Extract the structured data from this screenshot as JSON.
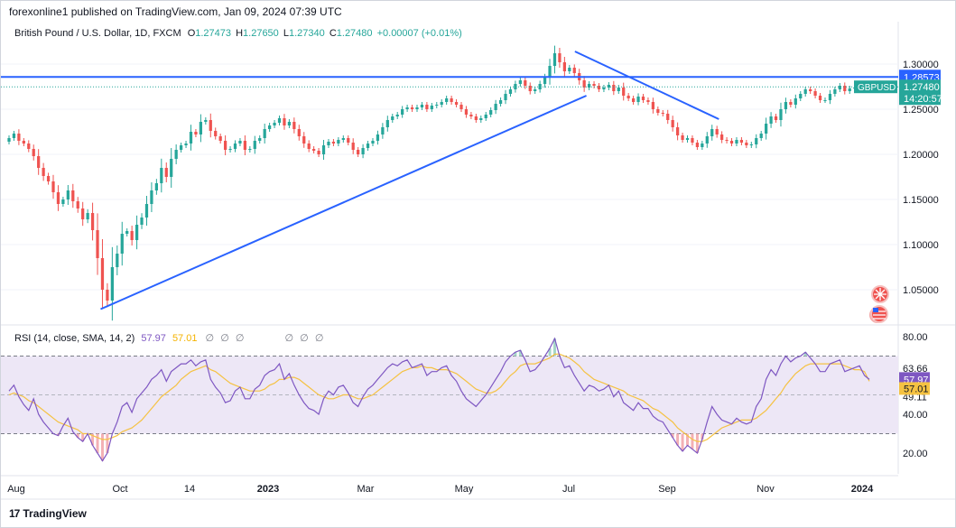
{
  "header": {
    "published": "forexonline1 published on TradingView.com, Jan 09, 2024 07:39 UTC"
  },
  "symbol": {
    "name": "British Pound / U.S. Dollar, 1D, FXCM",
    "open_label": "O",
    "open": "1.27473",
    "high_label": "H",
    "high": "1.27650",
    "low_label": "L",
    "low": "1.27340",
    "close_label": "C",
    "close": "1.27480",
    "change": "+0.00007 (+0.01%)"
  },
  "price_axis": {
    "ticks": [
      "1.30000",
      "1.25000",
      "1.20000",
      "1.15000",
      "1.10000",
      "1.05000"
    ],
    "level_label": "1.28573",
    "symbol_badge": "GBPUSD",
    "price_badge": "1.27480",
    "countdown": "14:20:57"
  },
  "rsi": {
    "legend": "RSI (14, close, SMA, 14, 2)",
    "value": "57.97",
    "sma_value": "57.01",
    "glyphs": [
      "∅",
      "∅",
      "∅",
      "∅",
      "∅",
      "∅"
    ],
    "ticks": [
      "80.00",
      "63.66",
      "49.11",
      "40.00",
      "20.00"
    ]
  },
  "time_axis": {
    "labels": [
      "Aug",
      "Oct",
      "14",
      "2023",
      "Mar",
      "May",
      "Jul",
      "Sep",
      "Nov",
      "2024"
    ]
  },
  "footer": {
    "brand": "TradingView",
    "logo": "17"
  },
  "colors": {
    "up": "#26a69a",
    "down": "#ef5350",
    "trendline": "#2962ff",
    "rsi": "#7e57c2",
    "rsi_sma": "#f5c242",
    "rsi_band": "#ede7f6"
  },
  "chart_data": {
    "type": "candlestick",
    "symbol": "GBPUSD",
    "timeframe": "1D",
    "x_range": [
      "2022-08-01",
      "2024-01-09"
    ],
    "ylim": [
      1.02,
      1.32
    ],
    "closes": [
      1.218,
      1.223,
      1.215,
      1.212,
      1.206,
      1.198,
      1.185,
      1.176,
      1.17,
      1.158,
      1.145,
      1.15,
      1.16,
      1.148,
      1.14,
      1.128,
      1.135,
      1.116,
      1.085,
      1.05,
      1.038,
      1.075,
      1.09,
      1.112,
      1.115,
      1.105,
      1.122,
      1.13,
      1.145,
      1.16,
      1.168,
      1.185,
      1.175,
      1.195,
      1.205,
      1.21,
      1.212,
      1.225,
      1.222,
      1.236,
      1.238,
      1.226,
      1.22,
      1.215,
      1.205,
      1.206,
      1.212,
      1.215,
      1.205,
      1.206,
      1.215,
      1.218,
      1.228,
      1.232,
      1.235,
      1.24,
      1.232,
      1.236,
      1.228,
      1.22,
      1.212,
      1.206,
      1.204,
      1.2,
      1.21,
      1.214,
      1.212,
      1.216,
      1.218,
      1.213,
      1.205,
      1.2,
      1.207,
      1.212,
      1.215,
      1.222,
      1.23,
      1.238,
      1.242,
      1.244,
      1.25,
      1.252,
      1.25,
      1.252,
      1.255,
      1.25,
      1.254,
      1.255,
      1.258,
      1.262,
      1.258,
      1.255,
      1.25,
      1.244,
      1.242,
      1.238,
      1.24,
      1.244,
      1.249,
      1.256,
      1.26,
      1.267,
      1.272,
      1.278,
      1.282,
      1.276,
      1.27,
      1.272,
      1.278,
      1.285,
      1.298,
      1.312,
      1.302,
      1.292,
      1.296,
      1.29,
      1.282,
      1.274,
      1.278,
      1.276,
      1.272,
      1.274,
      1.277,
      1.27,
      1.274,
      1.265,
      1.262,
      1.258,
      1.264,
      1.26,
      1.258,
      1.25,
      1.246,
      1.245,
      1.238,
      1.23,
      1.221,
      1.216,
      1.218,
      1.213,
      1.208,
      1.212,
      1.22,
      1.228,
      1.222,
      1.216,
      1.215,
      1.212,
      1.216,
      1.213,
      1.21,
      1.211,
      1.218,
      1.223,
      1.234,
      1.242,
      1.238,
      1.25,
      1.258,
      1.255,
      1.262,
      1.267,
      1.272,
      1.27,
      1.265,
      1.26,
      1.26,
      1.267,
      1.272,
      1.276,
      1.27,
      1.273,
      1.274,
      1.277,
      1.275,
      1.2748
    ],
    "rsi_ylim": [
      15,
      85
    ],
    "rsi": [
      52,
      55,
      49,
      45,
      42,
      48,
      40,
      36,
      33,
      30,
      29,
      34,
      38,
      31,
      28,
      26,
      30,
      24,
      20,
      16,
      20,
      30,
      36,
      44,
      46,
      41,
      48,
      51,
      54,
      58,
      60,
      63,
      57,
      62,
      64,
      66,
      66,
      68,
      65,
      67,
      68,
      58,
      54,
      51,
      46,
      47,
      52,
      54,
      48,
      48,
      53,
      55,
      60,
      62,
      63,
      66,
      58,
      61,
      55,
      50,
      46,
      43,
      42,
      40,
      48,
      52,
      50,
      54,
      55,
      51,
      46,
      44,
      49,
      53,
      55,
      58,
      61,
      64,
      66,
      65,
      67,
      68,
      64,
      65,
      66,
      60,
      62,
      62,
      64,
      65,
      60,
      57,
      52,
      48,
      46,
      44,
      47,
      50,
      54,
      58,
      62,
      67,
      70,
      72,
      73,
      68,
      62,
      63,
      66,
      70,
      74,
      79,
      70,
      64,
      65,
      60,
      56,
      52,
      55,
      54,
      52,
      53,
      55,
      49,
      52,
      46,
      44,
      42,
      46,
      43,
      43,
      39,
      37,
      36,
      32,
      28,
      24,
      21,
      24,
      22,
      20,
      27,
      36,
      44,
      40,
      37,
      36,
      35,
      38,
      36,
      35,
      36,
      44,
      48,
      58,
      63,
      60,
      66,
      70,
      67,
      69,
      70,
      72,
      69,
      66,
      62,
      62,
      66,
      67,
      68,
      62,
      63,
      64,
      65,
      60,
      57.97
    ],
    "rsi_sma": [
      50,
      51,
      50,
      49,
      47,
      46,
      44,
      42,
      40,
      38,
      36,
      35,
      34,
      33,
      32,
      30,
      30,
      29,
      28,
      27,
      27,
      28,
      29,
      31,
      32,
      33,
      35,
      37,
      40,
      43,
      46,
      49,
      51,
      53,
      55,
      58,
      60,
      62,
      63,
      64,
      65,
      63,
      62,
      60,
      58,
      56,
      55,
      54,
      53,
      52,
      52,
      52,
      53,
      55,
      56,
      58,
      58,
      59,
      59,
      58,
      56,
      54,
      52,
      50,
      49,
      48,
      48,
      49,
      50,
      50,
      49,
      48,
      48,
      49,
      50,
      52,
      54,
      56,
      58,
      60,
      62,
      63,
      64,
      64,
      65,
      64,
      64,
      63,
      63,
      63,
      62,
      61,
      59,
      57,
      55,
      53,
      52,
      51,
      51,
      52,
      54,
      57,
      60,
      62,
      65,
      66,
      66,
      66,
      67,
      68,
      69,
      71,
      71,
      70,
      69,
      67,
      65,
      62,
      60,
      58,
      57,
      56,
      55,
      54,
      53,
      52,
      50,
      49,
      48,
      47,
      45,
      43,
      42,
      40,
      38,
      36,
      33,
      31,
      29,
      27,
      26,
      26,
      27,
      29,
      31,
      33,
      34,
      35,
      36,
      37,
      37,
      37,
      38,
      40,
      42,
      45,
      48,
      51,
      55,
      58,
      61,
      63,
      65,
      66,
      66,
      66,
      66,
      66,
      66,
      66,
      65,
      64,
      63,
      63,
      62,
      57.01
    ],
    "horizontal_level": 1.28573,
    "current_price": 1.2748,
    "trendlines": [
      {
        "from": [
          "2022-09-26",
          1.0285
        ],
        "to": [
          "2023-07-20",
          1.265
        ]
      },
      {
        "from": [
          "2023-07-13",
          1.314
        ],
        "to": [
          "2023-10-09",
          1.239
        ]
      }
    ],
    "rsi_levels": [
      70,
      30
    ]
  }
}
